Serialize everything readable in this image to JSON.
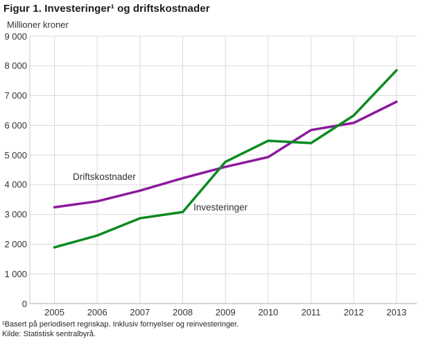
{
  "title": "Figur 1. Investeringer¹ og driftskostnader",
  "footnote": "¹Basert på periodisert regnskap. Inklusiv fornyelser og reinvesteringer.",
  "source": "Kilde: Statistisk sentralbyrå.",
  "colors": {
    "grid": "#dadada",
    "axis_left": "#c9c9c9",
    "axis_bottom": "#ababab",
    "text": "#333333"
  },
  "chart_data": {
    "type": "line",
    "title": "Figur 1. Investeringer¹ og driftskostnader",
    "ylabel": "Millioner kroner",
    "xlabel": "",
    "x": [
      2005,
      2006,
      2007,
      2008,
      2009,
      2010,
      2011,
      2012,
      2013
    ],
    "series": [
      {
        "name": "Driftskostnader",
        "color": "#8c1a9c",
        "values": [
          3240,
          3440,
          3800,
          4220,
          4600,
          4930,
          5840,
          6080,
          6790
        ]
      },
      {
        "name": "Investeringer",
        "color": "#0b8a21",
        "values": [
          1890,
          2290,
          2870,
          3080,
          4770,
          5480,
          5400,
          6330,
          7850
        ]
      }
    ],
    "ylim": [
      0,
      9000
    ],
    "yticks": [
      0,
      1000,
      2000,
      3000,
      4000,
      5000,
      6000,
      7000,
      8000,
      9000
    ],
    "ytick_labels": [
      "0",
      "1 000",
      "2 000",
      "3 000",
      "4 000",
      "5 000",
      "6 000",
      "7 000",
      "8 000",
      "9 000"
    ],
    "grid": true,
    "legend": "inline-labels"
  }
}
